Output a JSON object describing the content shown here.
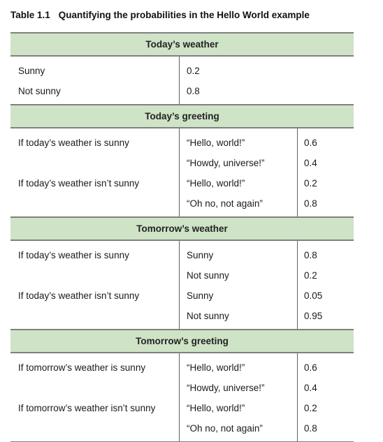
{
  "caption": {
    "number": "Table 1.1",
    "title": "Quantifying the probabilities in the Hello World example"
  },
  "sections": [
    {
      "header": "Today’s weather",
      "cols": 2,
      "rows": [
        {
          "condition": "Sunny",
          "prob": "0.2"
        },
        {
          "condition": "Not sunny",
          "prob": "0.8"
        }
      ]
    },
    {
      "header": "Today’s greeting",
      "cols": 3,
      "rows": [
        {
          "condition": "If today’s weather is sunny",
          "outcome": "“Hello, world!”",
          "prob": "0.6"
        },
        {
          "condition": "",
          "outcome": "“Howdy, universe!”",
          "prob": "0.4"
        },
        {
          "condition": "If today’s weather isn’t sunny",
          "outcome": "“Hello, world!”",
          "prob": "0.2"
        },
        {
          "condition": "",
          "outcome": "“Oh no, not again”",
          "prob": "0.8"
        }
      ]
    },
    {
      "header": "Tomorrow’s weather",
      "cols": 3,
      "rows": [
        {
          "condition": "If today’s weather is sunny",
          "outcome": "Sunny",
          "prob": "0.8"
        },
        {
          "condition": "",
          "outcome": "Not sunny",
          "prob": "0.2"
        },
        {
          "condition": "If today’s weather isn’t sunny",
          "outcome": "Sunny",
          "prob": "0.05"
        },
        {
          "condition": "",
          "outcome": "Not sunny",
          "prob": "0.95"
        }
      ]
    },
    {
      "header": "Tomorrow’s greeting",
      "cols": 3,
      "rows": [
        {
          "condition": "If tomorrow’s weather is sunny",
          "outcome": "“Hello, world!”",
          "prob": "0.6"
        },
        {
          "condition": "",
          "outcome": "“Howdy, universe!”",
          "prob": "0.4"
        },
        {
          "condition": "If tomorrow’s weather isn’t sunny",
          "outcome": "“Hello, world!”",
          "prob": "0.2"
        },
        {
          "condition": "",
          "outcome": "“Oh no, not again”",
          "prob": "0.8"
        }
      ]
    }
  ]
}
